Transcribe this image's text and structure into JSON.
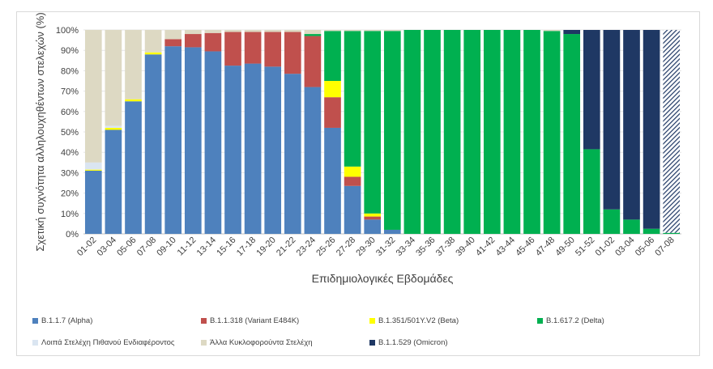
{
  "chart_data": {
    "type": "bar",
    "stacked": true,
    "percent": true,
    "xlabel": "Επιδημιολογικές Εβδομάδες",
    "ylabel": "Σχετική συχνότητα αλληλουχηθέντων στελεχών (%)",
    "ylim": [
      0,
      100
    ],
    "yticks": [
      "0%",
      "10%",
      "20%",
      "30%",
      "40%",
      "50%",
      "60%",
      "70%",
      "80%",
      "90%",
      "100%"
    ],
    "grid": true,
    "legend_position": "bottom",
    "categories": [
      "01-02",
      "03-04",
      "05-06",
      "07-08",
      "09-10",
      "11-12",
      "13-14",
      "15-16",
      "17-18",
      "19-20",
      "21-22",
      "23-24",
      "25-26",
      "27-28",
      "29-30",
      "31-32",
      "33-34",
      "35-36",
      "37-38",
      "39-40",
      "41-42",
      "43-44",
      "45-46",
      "47-48",
      "49-50",
      "51-52",
      "01-02",
      "03-04",
      "05-06",
      "07-08"
    ],
    "hatched_last": true,
    "series": [
      {
        "name": "B.1.1.7 (Alpha)",
        "color": "#4e81bd",
        "values": [
          31,
          51,
          65,
          88,
          92,
          91.5,
          89.5,
          82.5,
          83.5,
          82,
          78.5,
          72,
          52,
          23.5,
          7,
          2,
          0,
          0,
          0,
          0,
          0,
          0,
          0,
          0,
          0,
          0,
          0,
          0,
          0,
          0
        ]
      },
      {
        "name": "B.1.1.318 (Variant E484K)",
        "color": "#c0504d",
        "values": [
          0,
          0,
          0,
          0,
          3.5,
          6.5,
          9,
          16.5,
          15.5,
          17,
          20.5,
          25,
          15,
          4.5,
          1.5,
          0,
          0,
          0,
          0,
          0,
          0,
          0,
          0,
          0,
          0,
          0,
          0,
          0,
          0,
          0
        ]
      },
      {
        "name": "B.1.351/501Y.V2 (Beta)",
        "color": "#ffff00",
        "values": [
          0.5,
          1,
          1,
          1,
          0,
          0,
          0,
          0,
          0,
          0,
          0,
          0,
          8,
          5,
          1.5,
          0,
          0,
          0,
          0,
          0,
          0,
          0,
          0,
          0,
          0,
          0,
          0,
          0,
          0,
          0
        ]
      },
      {
        "name": "B.1.617.2 (Delta)",
        "color": "#00b050",
        "values": [
          0,
          0,
          0,
          0,
          0,
          0,
          0,
          0,
          0,
          0,
          0,
          1,
          24.5,
          66.5,
          89.5,
          97.5,
          100,
          100,
          100,
          100,
          100,
          100,
          100,
          99.5,
          98,
          41.5,
          12,
          7,
          2.5,
          0.5
        ]
      },
      {
        "name": "Λοιπά Στελέχη Πιθανού Ενδιαφέροντος",
        "color": "#dae5f1",
        "values": [
          3.5,
          1,
          0,
          0,
          0,
          0,
          0,
          0,
          0,
          0,
          0,
          0,
          0,
          0,
          0,
          0,
          0,
          0,
          0,
          0,
          0,
          0,
          0,
          0,
          0,
          0,
          0,
          0,
          0,
          0
        ]
      },
      {
        "name": "Άλλα Κυκλοφορούντα Στελέχη",
        "color": "#ddd9c3",
        "values": [
          65,
          47,
          34,
          11,
          4.5,
          2,
          1.5,
          1,
          1,
          1,
          1,
          2,
          0.5,
          0.5,
          0.5,
          0.5,
          0,
          0,
          0,
          0,
          0,
          0,
          0,
          0.5,
          0,
          0,
          0,
          0,
          0,
          0
        ]
      },
      {
        "name": "B.1.1.529 (Omicron)",
        "color": "#1f3864",
        "values": [
          0,
          0,
          0,
          0,
          0,
          0,
          0,
          0,
          0,
          0,
          0,
          0,
          0,
          0,
          0,
          0,
          0,
          0,
          0,
          0,
          0,
          0,
          0,
          0,
          2,
          58.5,
          88,
          93,
          97.5,
          99.5
        ]
      }
    ],
    "legend": [
      {
        "name": "B.1.1.7 (Alpha)",
        "color": "#4e81bd"
      },
      {
        "name": "B.1.1.318 (Variant E484K)",
        "color": "#c0504d"
      },
      {
        "name": "B.1.351/501Y.V2 (Beta)",
        "color": "#ffff00"
      },
      {
        "name": "B.1.617.2 (Delta)",
        "color": "#00b050"
      },
      {
        "name": "Λοιπά Στελέχη Πιθανού Ενδιαφέροντος",
        "color": "#dae5f1"
      },
      {
        "name": "Άλλα Κυκλοφορούντα Στελέχη",
        "color": "#ddd9c3"
      },
      {
        "name": "B.1.1.529 (Omicron)",
        "color": "#1f3864"
      }
    ]
  }
}
